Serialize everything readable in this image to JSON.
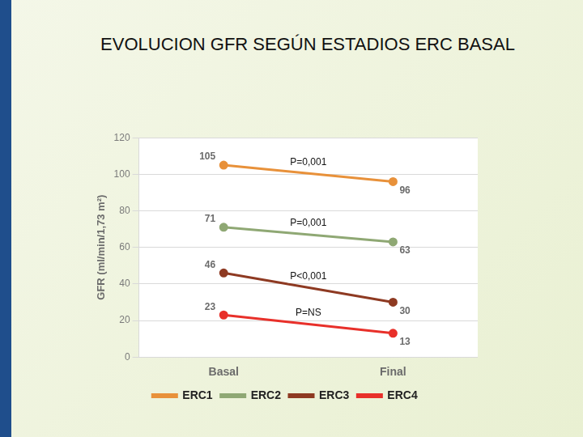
{
  "chart_data": {
    "type": "line",
    "title": "EVOLUCION GFR SEGÚN ESTADIOS ERC BASAL",
    "y_label": "GFR (ml/min/1,73 m²)",
    "categories": [
      "Basal",
      "Final"
    ],
    "series": [
      {
        "name": "ERC1",
        "color": "#e8913a",
        "values": [
          105,
          96
        ]
      },
      {
        "name": "ERC2",
        "color": "#8fa874",
        "values": [
          71,
          63
        ]
      },
      {
        "name": "ERC3",
        "color": "#8e3a22",
        "values": [
          46,
          30
        ]
      },
      {
        "name": "ERC4",
        "color": "#e8302a",
        "values": [
          23,
          13
        ]
      }
    ],
    "annotations": [
      "P=0,001",
      "P=0,001",
      "P<0,001",
      "P=NS"
    ],
    "ylim": [
      0,
      120
    ],
    "yticks": [
      0,
      20,
      40,
      60,
      80,
      100,
      120
    ],
    "grid": true,
    "legend": "bottom",
    "data_labels": true,
    "marker": "circle"
  }
}
